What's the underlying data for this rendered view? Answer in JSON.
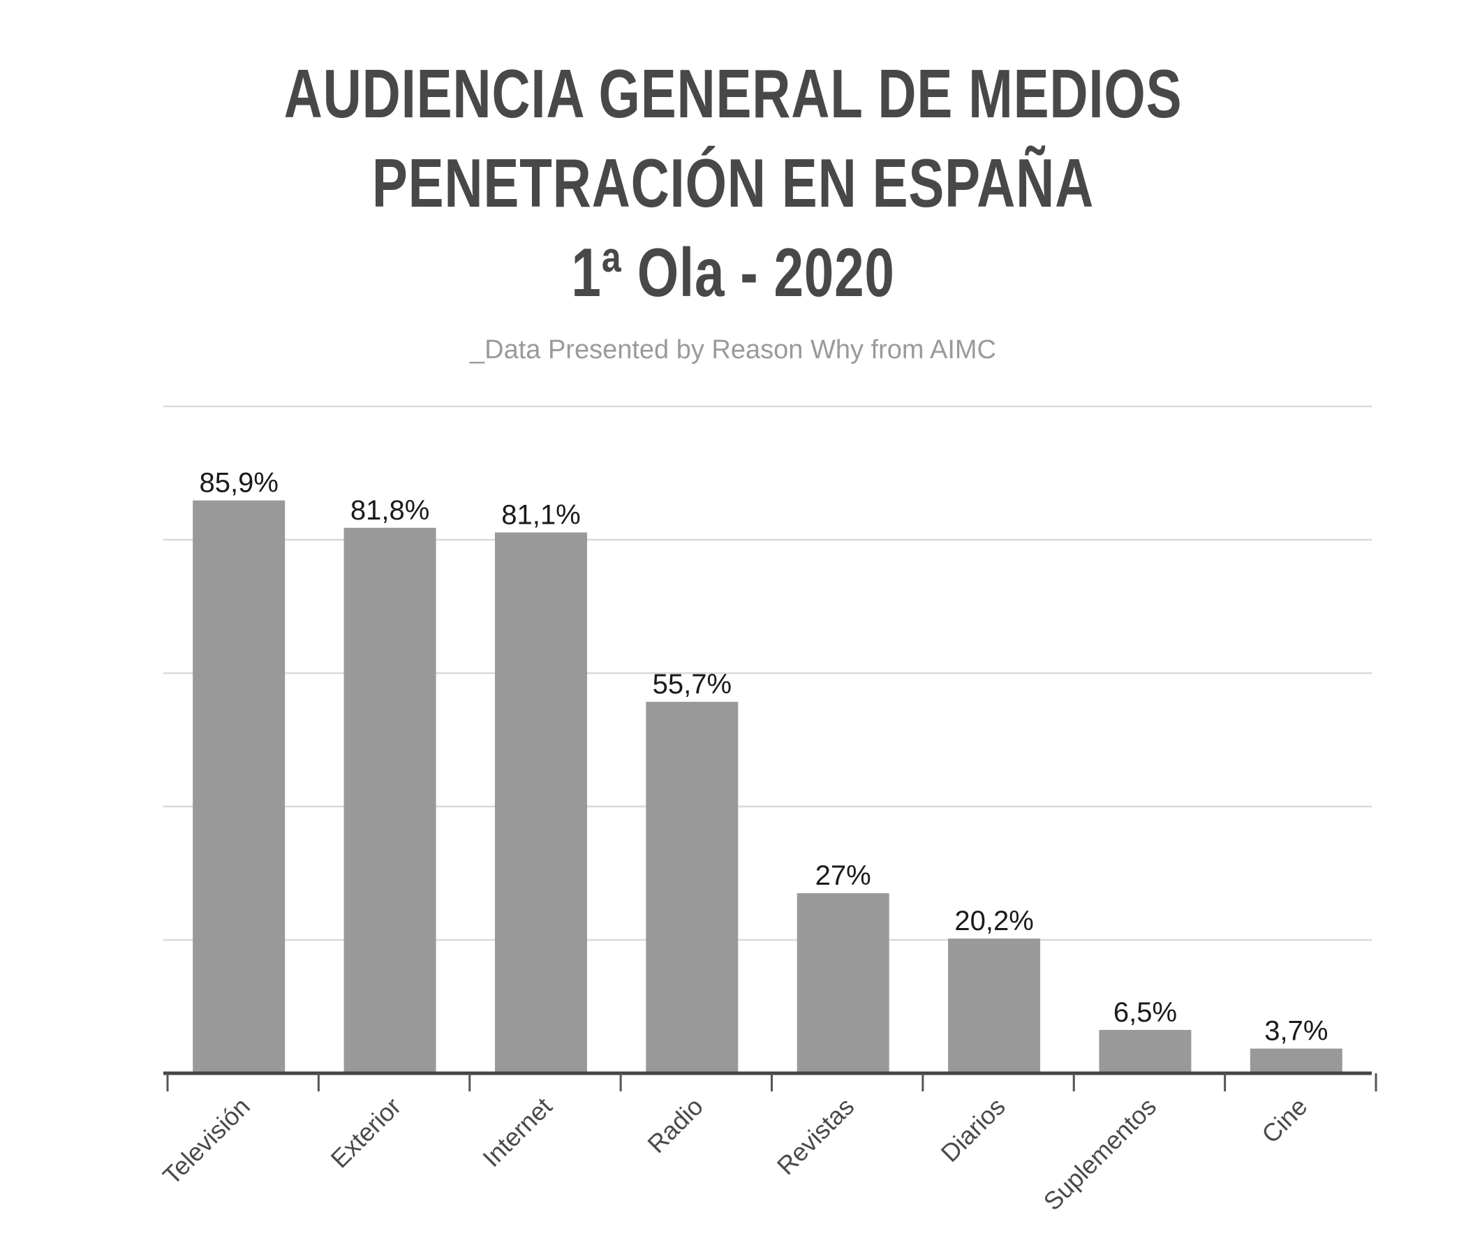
{
  "chart_data": {
    "type": "bar",
    "title": "AUDIENCIA GENERAL DE MEDIOS",
    "title_lines": [
      "AUDIENCIA GENERAL DE MEDIOS",
      "PENETRACIÓN EN ESPAÑA",
      "1ª Ola - 2020"
    ],
    "subtitle": "_Data Presented by Reason Why from AIMC",
    "categories": [
      "Televisión",
      "Exterior",
      "Internet",
      "Radio",
      "Revistas",
      "Diarios",
      "Suplementos",
      "Cine"
    ],
    "values": [
      85.9,
      81.8,
      81.1,
      55.7,
      27,
      20.2,
      6.5,
      3.7
    ],
    "value_labels": [
      "85,9%",
      "81,8%",
      "81,1%",
      "55,7%",
      "27%",
      "20,2%",
      "6,5%",
      "3,7%"
    ],
    "ylim": [
      0,
      100
    ],
    "grid": true,
    "bar_color": "#999999",
    "xlabel": "",
    "ylabel": ""
  }
}
